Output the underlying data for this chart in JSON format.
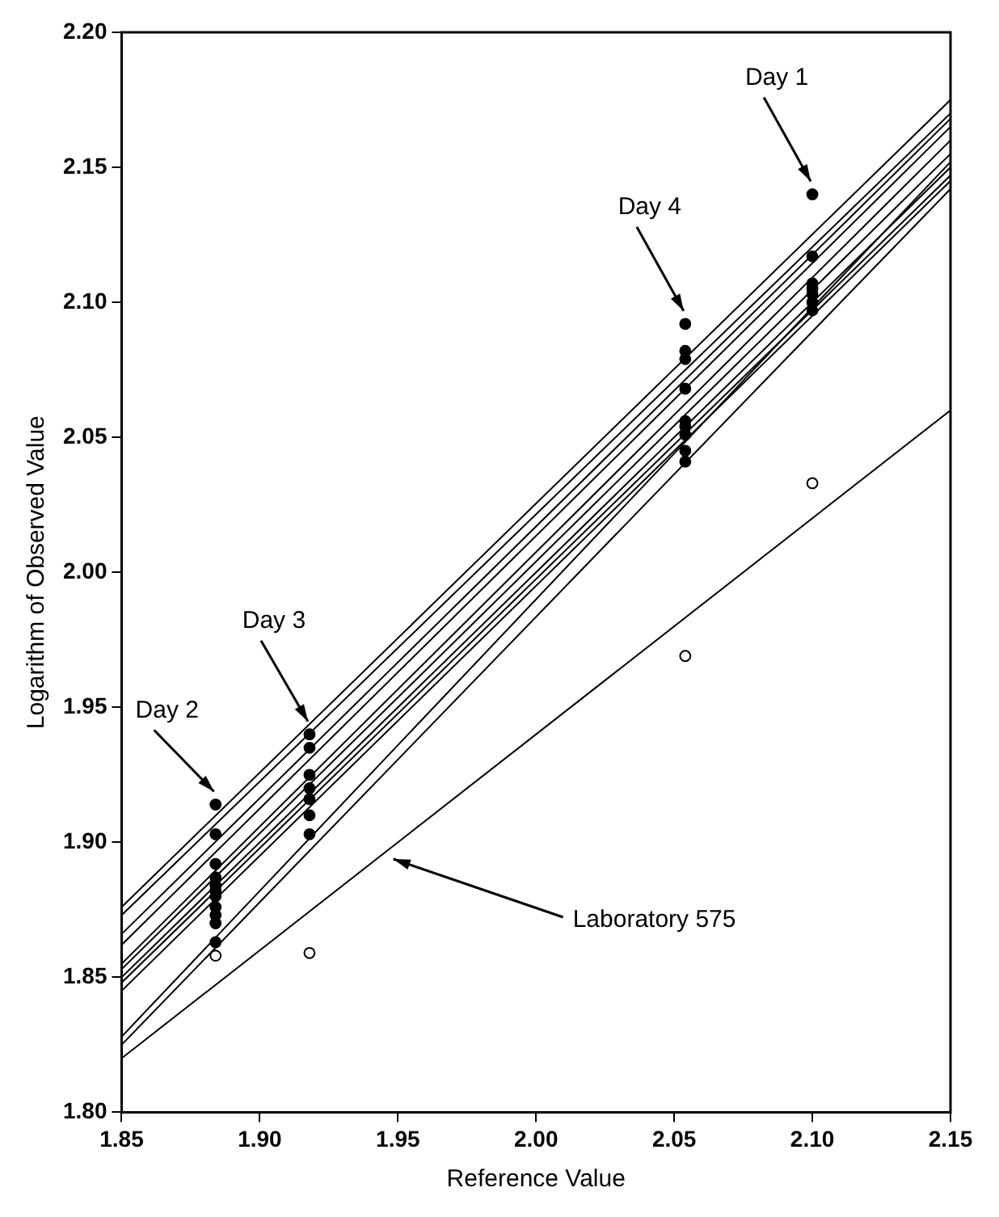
{
  "chart_data": {
    "type": "scatter",
    "xlabel": "Reference Value",
    "ylabel": "Logarithm of Observed Value",
    "xlim": [
      1.85,
      2.15
    ],
    "xticks": [
      1.85,
      {
        "value": 1.9,
        "label": "1.90"
      },
      1.95,
      {
        "value": 2.0,
        "label": "2.00"
      },
      2.05,
      {
        "value": 2.1,
        "label": "2.10"
      },
      2.15
    ],
    "ylim": [
      1.8,
      2.2
    ],
    "yticks": [
      {
        "value": 1.8,
        "label": "1.80"
      },
      1.85,
      {
        "value": 1.9,
        "label": "1.90"
      },
      1.95,
      {
        "value": 2.0,
        "label": "2.00"
      },
      2.05,
      {
        "value": 2.1,
        "label": "2.10"
      },
      2.15,
      {
        "value": 2.2,
        "label": "2.20"
      }
    ],
    "grid": false,
    "legend": false,
    "annotations": [
      {
        "text": "Day 1",
        "x": 2.1,
        "y": 2.14
      },
      {
        "text": "Day 4",
        "x": 2.054,
        "y": 2.092
      },
      {
        "text": "Day 3",
        "x": 1.918,
        "y": 1.94
      },
      {
        "text": "Day 2",
        "x": 1.884,
        "y": 1.914
      },
      {
        "text": "Laboratory 575",
        "x": 1.946,
        "y": 1.895
      }
    ],
    "series": [
      {
        "type": "scatter",
        "marker": "circle",
        "color": "#000000",
        "x": [
          1.884,
          1.884,
          1.884,
          1.884,
          1.884,
          1.884,
          1.884,
          1.884,
          1.884,
          1.884,
          1.884,
          1.918,
          1.918,
          1.918,
          1.918,
          1.918,
          1.918,
          1.918,
          2.054,
          2.054,
          2.054,
          2.054,
          2.054,
          2.054,
          2.054,
          2.054,
          2.054,
          2.1,
          2.1,
          2.1,
          2.1,
          2.1,
          2.1,
          2.1
        ],
        "values": [
          1.914,
          1.903,
          1.892,
          1.887,
          1.884,
          1.882,
          1.88,
          1.876,
          1.873,
          1.87,
          1.863,
          1.94,
          1.935,
          1.925,
          1.92,
          1.916,
          1.91,
          1.903,
          2.092,
          2.082,
          2.079,
          2.068,
          2.056,
          2.054,
          2.051,
          2.045,
          2.041,
          2.14,
          2.117,
          2.107,
          2.105,
          2.103,
          2.1,
          2.097
        ]
      },
      {
        "type": "scatter",
        "marker": "circle",
        "color": "#ffffff",
        "x": [
          1.884,
          1.918,
          2.054,
          2.1
        ],
        "values": [
          1.858,
          1.859,
          1.969,
          2.033
        ]
      },
      {
        "type": "line",
        "marker": "none",
        "color": "#000000",
        "x": [
          1.85,
          2.15
        ],
        "values": [
          1.876,
          2.175
        ]
      },
      {
        "type": "line",
        "marker": "none",
        "color": "#000000",
        "x": [
          1.85,
          2.15
        ],
        "values": [
          1.873,
          2.17
        ]
      },
      {
        "type": "line",
        "marker": "none",
        "color": "#000000",
        "x": [
          1.85,
          2.15
        ],
        "values": [
          1.866,
          2.168
        ]
      },
      {
        "type": "line",
        "marker": "none",
        "color": "#000000",
        "x": [
          1.85,
          2.15
        ],
        "values": [
          1.862,
          2.165
        ]
      },
      {
        "type": "line",
        "marker": "none",
        "color": "#000000",
        "x": [
          1.85,
          2.15
        ],
        "values": [
          1.855,
          2.16
        ]
      },
      {
        "type": "line",
        "marker": "none",
        "color": "#000000",
        "x": [
          1.85,
          2.15
        ],
        "values": [
          1.853,
          2.155
        ]
      },
      {
        "type": "line",
        "marker": "none",
        "color": "#000000",
        "x": [
          1.85,
          2.15
        ],
        "values": [
          1.85,
          2.15
        ]
      },
      {
        "type": "line",
        "marker": "none",
        "color": "#000000",
        "x": [
          1.85,
          2.15
        ],
        "values": [
          1.848,
          2.147
        ]
      },
      {
        "type": "line",
        "marker": "none",
        "color": "#000000",
        "x": [
          1.85,
          2.15
        ],
        "values": [
          1.845,
          2.145
        ]
      },
      {
        "type": "line",
        "marker": "none",
        "color": "#000000",
        "x": [
          1.85,
          2.15
        ],
        "values": [
          1.828,
          2.152
        ]
      },
      {
        "type": "line",
        "marker": "none",
        "color": "#000000",
        "x": [
          1.85,
          2.15
        ],
        "values": [
          1.825,
          2.142
        ]
      },
      {
        "type": "line",
        "marker": "none",
        "color": "#000000",
        "x": [
          1.85,
          2.15
        ],
        "values": [
          1.82,
          2.06
        ]
      }
    ]
  }
}
